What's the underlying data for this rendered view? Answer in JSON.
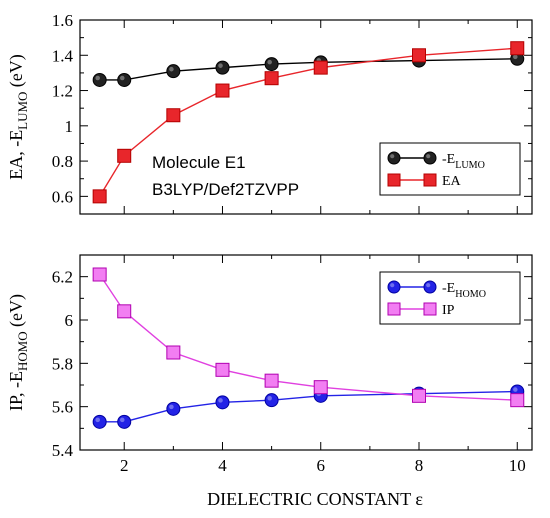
{
  "chart_data": [
    {
      "type": "line",
      "title": "",
      "xlabel": "",
      "ylabel_parts": [
        {
          "t": "EA, -E"
        },
        {
          "t": "LUMO",
          "sub": true
        },
        {
          "t": " (eV)"
        }
      ],
      "xlim": [
        1.1,
        10.3
      ],
      "ylim": [
        0.5,
        1.6
      ],
      "xticks": [
        2,
        4,
        6,
        8,
        10
      ],
      "yticks": [
        {
          "v": 0.6,
          "label": "0.6"
        },
        {
          "v": 0.8,
          "label": "0.8"
        },
        {
          "v": 1.0,
          "label": "1"
        },
        {
          "v": 1.2,
          "label": "1.2"
        },
        {
          "v": 1.4,
          "label": "1.4"
        },
        {
          "v": 1.6,
          "label": "1.6"
        }
      ],
      "annotations": [
        "Molecule E1",
        "B3LYP/Def2TZVPP"
      ],
      "legend_position": "center-right",
      "series": [
        {
          "name_parts": [
            {
              "t": "-E"
            },
            {
              "t": "LUMO",
              "sub": true
            }
          ],
          "marker": "circle",
          "fill": "#222222",
          "stroke": "#000000",
          "line": "#000000",
          "x": [
            1.5,
            2,
            3,
            4,
            5,
            6,
            8,
            10
          ],
          "y": [
            1.26,
            1.26,
            1.31,
            1.33,
            1.35,
            1.36,
            1.37,
            1.38
          ]
        },
        {
          "name_parts": [
            {
              "t": "EA"
            }
          ],
          "marker": "square",
          "fill": "#e8262b",
          "stroke": "#b40000",
          "line": "#e8262b",
          "x": [
            1.5,
            2,
            3,
            4,
            5,
            6,
            8,
            10
          ],
          "y": [
            0.6,
            0.83,
            1.06,
            1.2,
            1.27,
            1.33,
            1.4,
            1.44
          ]
        }
      ]
    },
    {
      "type": "line",
      "title": "",
      "xlabel": "DIELECTRIC CONSTANT ε",
      "ylabel_parts": [
        {
          "t": "IP, -E"
        },
        {
          "t": "HOMO",
          "sub": true
        },
        {
          "t": " (eV)"
        }
      ],
      "xlim": [
        1.1,
        10.3
      ],
      "ylim": [
        5.4,
        6.3
      ],
      "xticks": [
        2,
        4,
        6,
        8,
        10
      ],
      "yticks": [
        {
          "v": 5.4,
          "label": "5.4"
        },
        {
          "v": 5.6,
          "label": "5.6"
        },
        {
          "v": 5.8,
          "label": "5.8"
        },
        {
          "v": 6.0,
          "label": "6"
        },
        {
          "v": 6.2,
          "label": "6.2"
        }
      ],
      "legend_position": "top-right",
      "series": [
        {
          "name_parts": [
            {
              "t": "-E"
            },
            {
              "t": "HOMO",
              "sub": true
            }
          ],
          "marker": "circle",
          "fill": "#2323e6",
          "stroke": "#0000a0",
          "line": "#2323e6",
          "x": [
            1.5,
            2,
            3,
            4,
            5,
            6,
            8,
            10
          ],
          "y": [
            5.53,
            5.53,
            5.59,
            5.62,
            5.63,
            5.65,
            5.66,
            5.67
          ]
        },
        {
          "name_parts": [
            {
              "t": "IP"
            }
          ],
          "marker": "square",
          "fill": "#f27ef2",
          "stroke": "#b000b0",
          "line": "#e040e0",
          "x": [
            1.5,
            2,
            3,
            4,
            5,
            6,
            8,
            10
          ],
          "y": [
            6.21,
            6.04,
            5.85,
            5.77,
            5.72,
            5.69,
            5.65,
            5.63
          ]
        }
      ]
    }
  ]
}
